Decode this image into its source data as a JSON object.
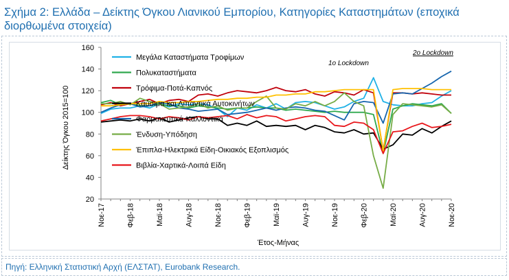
{
  "title": "Σχήμα 2: Ελλάδα – Δείκτης Όγκου Λιανικού Εμπορίου, Κατηγορίες Καταστημάτων (εποχικά διορθωμένα στοιχεία)",
  "source": "Πηγή: Ελληνική Στατιστική Αρχή (ΕΛΣΤΑΤ), Eurobank Research.",
  "chart_data": {
    "type": "line",
    "ylabel": "Δείκτης Όγκου 2015=100",
    "xlabel": "Έτος-Μήνας",
    "ylim": [
      20,
      160
    ],
    "yticks": [
      20,
      40,
      60,
      80,
      100,
      120,
      140,
      160
    ],
    "x": [
      "Νοε-17",
      "Δεκ-17",
      "Ιαν-18",
      "Φεβ-18",
      "Μαρ-18",
      "Απρ-18",
      "Μαϊ-18",
      "Ιουν-18",
      "Ιουλ-18",
      "Αυγ-18",
      "Σεπ-18",
      "Οκτ-18",
      "Νοε-18",
      "Δεκ-18",
      "Ιαν-19",
      "Φεβ-19",
      "Μαρ-19",
      "Απρ-19",
      "Μαϊ-19",
      "Ιουν-19",
      "Ιουλ-19",
      "Αυγ-19",
      "Σεπ-19",
      "Οκτ-19",
      "Νοε-19",
      "Δεκ-19",
      "Ιαν-20",
      "Φεβ-20",
      "Μαρ-20",
      "Απρ-20",
      "Μαϊ-20",
      "Ιουν-20",
      "Ιουλ-20",
      "Αυγ-20",
      "Σεπ-20",
      "Οκτ-20",
      "Νοε-20"
    ],
    "xtick_labels": [
      "Νοε-17",
      "Φεβ-18",
      "Μαϊ-18",
      "Αυγ-18",
      "Νοε-18",
      "Φεβ-19",
      "Μαϊ-19",
      "Αυγ-19",
      "Νοε-19",
      "Φεβ-20",
      "Μαϊ-20",
      "Αυγ-20",
      "Νοε-20"
    ],
    "annotations": [
      "1ο Lockdown",
      "2ο Lockdown"
    ],
    "legend_placement": "inside-left",
    "grid": false,
    "series": [
      {
        "name": "Μεγάλα Καταστήματα Τροφίμων",
        "color": "#1fb1e6",
        "values": [
          99,
          103,
          104,
          104,
          106,
          104,
          108,
          105,
          108,
          107,
          108,
          107,
          103,
          96,
          104,
          102,
          107,
          104,
          108,
          103,
          109,
          110,
          109,
          106,
          103,
          105,
          110,
          113,
          132,
          110,
          107,
          106,
          106,
          108,
          109,
          115,
          120
        ]
      },
      {
        "name": "Πολυκαταστήματα",
        "color": "#2ea84e",
        "values": [
          109,
          111,
          107,
          108,
          106,
          106,
          108,
          106,
          106,
          104,
          106,
          105,
          104,
          103,
          104,
          104,
          105,
          104,
          104,
          102,
          103,
          102,
          101,
          100,
          101,
          100,
          100,
          100,
          98,
          62,
          103,
          106,
          108,
          107,
          106,
          108,
          99
        ]
      },
      {
        "name": "Τρόφιμα-Ποτά-Καπνός",
        "color": "#c0000b",
        "values": [
          107,
          109,
          106,
          108,
          110,
          112,
          108,
          111,
          112,
          110,
          116,
          117,
          115,
          118,
          120,
          119,
          118,
          120,
          123,
          120,
          119,
          121,
          117,
          115,
          119,
          118,
          116,
          121,
          118,
          65,
          118,
          118,
          117,
          118,
          117,
          116,
          116
        ]
      },
      {
        "name": "Καύσιμα και Λιπαντικά Αυτοκινήτων",
        "color": "#000000",
        "values": [
          91,
          92,
          93,
          92,
          94,
          92,
          95,
          91,
          93,
          95,
          96,
          94,
          94,
          88,
          90,
          88,
          92,
          87,
          88,
          87,
          88,
          84,
          88,
          86,
          82,
          81,
          84,
          80,
          81,
          66,
          70,
          80,
          79,
          85,
          81,
          87,
          92
        ]
      },
      {
        "name": "Φαρμακευτικά-Καλλυντικά",
        "color": "#1665ad",
        "values": [
          100,
          104,
          107,
          108,
          105,
          106,
          109,
          108,
          104,
          103,
          101,
          102,
          103,
          98,
          99,
          100,
          102,
          104,
          102,
          104,
          105,
          104,
          102,
          101,
          97,
          93,
          108,
          110,
          109,
          90,
          117,
          118,
          117,
          122,
          127,
          133,
          138
        ]
      },
      {
        "name": "Ένδυση-Υπόδηση",
        "color": "#76ac46",
        "values": [
          108,
          108,
          110,
          107,
          113,
          110,
          108,
          103,
          104,
          105,
          108,
          104,
          106,
          102,
          104,
          104,
          110,
          115,
          104,
          103,
          108,
          106,
          110,
          106,
          110,
          118,
          110,
          106,
          60,
          30,
          98,
          108,
          107,
          106,
          105,
          107,
          99
        ]
      },
      {
        "name": "Έπιπλα-Ηλεκτρικά Είδη-Οικιακός Εξοπλισμός",
        "color": "#ffc000",
        "values": [
          106,
          106,
          107,
          108,
          108,
          108,
          110,
          109,
          109,
          110,
          110,
          111,
          112,
          112,
          113,
          113,
          114,
          114,
          116,
          116,
          117,
          117,
          119,
          119,
          120,
          121,
          121,
          121,
          121,
          64,
          121,
          122,
          122,
          122,
          121,
          121,
          121
        ]
      },
      {
        "name": "Βιβλία-Χαρτικά-Λοιπά Είδη",
        "color": "#e8161b",
        "values": [
          92,
          94,
          96,
          97,
          97,
          96,
          94,
          96,
          95,
          93,
          96,
          95,
          96,
          97,
          94,
          98,
          95,
          97,
          96,
          92,
          94,
          96,
          97,
          96,
          88,
          87,
          91,
          90,
          84,
          62,
          82,
          83,
          87,
          90,
          86,
          87,
          89
        ]
      }
    ]
  }
}
